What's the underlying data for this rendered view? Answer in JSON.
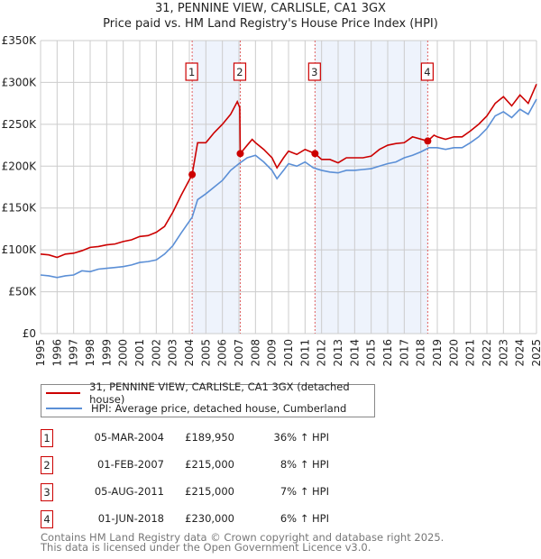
{
  "chart_data": {
    "type": "line",
    "title": "31, PENNINE VIEW, CARLISLE, CA1 3GX",
    "subtitle": "Price paid vs. HM Land Registry's House Price Index (HPI)",
    "xlabel": "",
    "ylabel": "",
    "xlim": [
      1995,
      2025
    ],
    "ylim": [
      0,
      350000
    ],
    "yticks": [
      "£0",
      "£50K",
      "£100K",
      "£150K",
      "£200K",
      "£250K",
      "£300K",
      "£350K"
    ],
    "xticks": [
      "1995",
      "1996",
      "1997",
      "1998",
      "1999",
      "2000",
      "2001",
      "2002",
      "2003",
      "2004",
      "2005",
      "2006",
      "2007",
      "2008",
      "2009",
      "2010",
      "2011",
      "2012",
      "2013",
      "2014",
      "2015",
      "2016",
      "2017",
      "2018",
      "2019",
      "2020",
      "2021",
      "2022",
      "2023",
      "2024",
      "2025"
    ],
    "grid": true,
    "colors": {
      "property": "#cc0000",
      "hpi": "#5b8fd6",
      "shade": "#eef3fc",
      "vline": "#e06060"
    },
    "series": [
      {
        "name": "31, PENNINE VIEW, CARLISLE, CA1 3GX (detached house)",
        "x": [
          1995,
          1995.5,
          1996,
          1996.5,
          1997,
          1997.5,
          1998,
          1998.5,
          1999,
          1999.5,
          2000,
          2000.5,
          2001,
          2001.5,
          2002,
          2002.5,
          2003,
          2003.5,
          2004.17,
          2004.5,
          2005,
          2005.5,
          2006,
          2006.5,
          2006.9,
          2007.05,
          2007.08,
          2007.5,
          2007.8,
          2008,
          2008.5,
          2009,
          2009.3,
          2009.7,
          2010,
          2010.5,
          2011,
          2011.6,
          2012,
          2012.5,
          2013,
          2013.5,
          2014,
          2014.5,
          2015,
          2015.5,
          2016,
          2016.5,
          2017,
          2017.5,
          2018.42,
          2018.8,
          2019,
          2019.5,
          2020,
          2020.5,
          2021,
          2021.5,
          2022,
          2022.5,
          2023,
          2023.5,
          2024,
          2024.5,
          2025
        ],
        "values": [
          95000,
          94000,
          91000,
          95000,
          96000,
          99000,
          103000,
          104000,
          106000,
          107000,
          110000,
          112000,
          116000,
          117000,
          121000,
          128000,
          145000,
          165000,
          189950,
          228000,
          228000,
          240000,
          250000,
          262000,
          277000,
          270000,
          215000,
          225000,
          232000,
          228000,
          220000,
          210000,
          198000,
          210000,
          218000,
          214000,
          220000,
          215000,
          208000,
          208000,
          204000,
          210000,
          210000,
          210000,
          212000,
          220000,
          225000,
          227000,
          228000,
          235000,
          230000,
          237000,
          235000,
          232000,
          235000,
          235000,
          242000,
          250000,
          260000,
          275000,
          283000,
          272000,
          285000,
          275000,
          298000
        ]
      },
      {
        "name": "HPI: Average price, detached house, Cumberland",
        "x": [
          1995,
          1995.5,
          1996,
          1996.5,
          1997,
          1997.5,
          1998,
          1998.5,
          1999,
          1999.5,
          2000,
          2000.5,
          2001,
          2001.5,
          2002,
          2002.5,
          2003,
          2003.5,
          2004.17,
          2004.5,
          2005,
          2005.5,
          2006,
          2006.5,
          2007,
          2007.5,
          2008,
          2008.5,
          2009,
          2009.3,
          2009.7,
          2010,
          2010.5,
          2011,
          2011.5,
          2012,
          2012.5,
          2013,
          2013.5,
          2014,
          2014.5,
          2015,
          2015.5,
          2016,
          2016.5,
          2017,
          2017.5,
          2018,
          2018.5,
          2019,
          2019.5,
          2020,
          2020.5,
          2021,
          2021.5,
          2022,
          2022.5,
          2023,
          2023.5,
          2024,
          2024.5,
          2025
        ],
        "values": [
          70000,
          69000,
          67000,
          69000,
          70000,
          75000,
          74000,
          77000,
          78000,
          79000,
          80000,
          82000,
          85000,
          86000,
          88000,
          95000,
          105000,
          120000,
          139000,
          160000,
          167000,
          175000,
          183000,
          195000,
          203000,
          210000,
          213000,
          205000,
          195000,
          185000,
          195000,
          203000,
          200000,
          205000,
          198000,
          195000,
          193000,
          192000,
          195000,
          195000,
          196000,
          197000,
          200000,
          203000,
          205000,
          210000,
          213000,
          217000,
          222000,
          222000,
          220000,
          222000,
          222000,
          228000,
          235000,
          245000,
          260000,
          265000,
          258000,
          268000,
          262000,
          280000
        ]
      }
    ],
    "sales": [
      {
        "label": "1",
        "x": 2004.17,
        "value": 189950,
        "date": "05-MAR-2004",
        "price": "£189,950",
        "hpi": "36% ↑ HPI"
      },
      {
        "label": "2",
        "x": 2007.08,
        "value": 215000,
        "date": "01-FEB-2007",
        "price": "£215,000",
        "hpi": "8% ↑ HPI"
      },
      {
        "label": "3",
        "x": 2011.6,
        "value": 215000,
        "date": "05-AUG-2011",
        "price": "£215,000",
        "hpi": "7% ↑ HPI"
      },
      {
        "label": "4",
        "x": 2018.42,
        "value": 230000,
        "date": "01-JUN-2018",
        "price": "£230,000",
        "hpi": "6% ↑ HPI"
      }
    ],
    "shaded_ranges": [
      [
        2004.17,
        2007.08
      ],
      [
        2011.6,
        2018.42
      ]
    ],
    "legend_position": "below"
  },
  "footer": {
    "line1": "Contains HM Land Registry data © Crown copyright and database right 2025.",
    "line2": "This data is licensed under the Open Government Licence v3.0."
  }
}
